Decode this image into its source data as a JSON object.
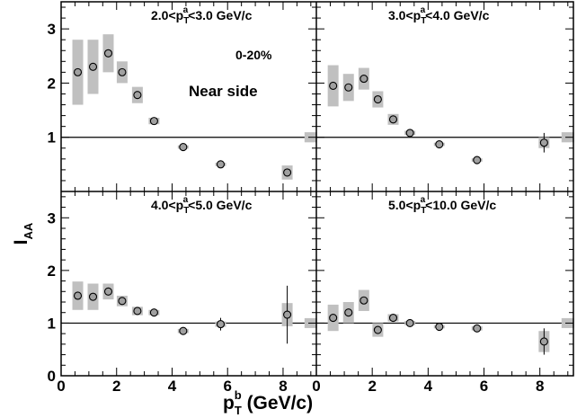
{
  "chart_data": {
    "type": "scatter",
    "layout": "2x2 panels, shared axes",
    "xlabel": {
      "main": "p",
      "sub": "T",
      "sup": "b",
      "unit": " (GeV/c)"
    },
    "ylabel": {
      "main": "I",
      "sub": "AA"
    },
    "xlim": [
      0,
      9.2
    ],
    "xticks": [
      0,
      2,
      4,
      6,
      8
    ],
    "xtick_labels": [
      "0",
      "2",
      "4",
      "6",
      "8"
    ],
    "ylim_top": [
      0,
      3.5
    ],
    "ylim_bottom": [
      0,
      3.5
    ],
    "yticks_top": [
      1,
      2,
      3
    ],
    "yticks_bottom": [
      0,
      1,
      2,
      3
    ],
    "reference_line": 1,
    "grid": false,
    "legend": "none",
    "annotations": {
      "centrality": "0-20%",
      "side": "Near side"
    },
    "colors": {
      "marker_fill": "#a0a0a0",
      "marker_edge": "#000000",
      "syst_box": "#c0c0c0",
      "line": "#000000"
    },
    "panels": [
      {
        "id": "a",
        "label": {
          "pre": "2.0<p",
          "sub": "T",
          "sup": "a",
          "post": "<3.0 GeV/c"
        },
        "x": [
          0.6,
          1.15,
          1.7,
          2.2,
          2.75,
          3.35,
          4.4,
          5.75,
          8.15
        ],
        "y": [
          2.2,
          2.3,
          2.55,
          2.2,
          1.78,
          1.3,
          0.82,
          0.5,
          0.35
        ],
        "stat_err": [
          0.05,
          0.05,
          0.05,
          0.04,
          0.03,
          0.03,
          0.02,
          0.02,
          0.05
        ],
        "syst_err": [
          0.6,
          0.5,
          0.35,
          0.2,
          0.15,
          0.06,
          0.03,
          0.03,
          0.13
        ],
        "norm_box": 0.12
      },
      {
        "id": "b",
        "label": {
          "pre": "3.0<p",
          "sub": "T",
          "sup": "a",
          "post": "<4.0 GeV/c"
        },
        "x": [
          0.6,
          1.15,
          1.7,
          2.2,
          2.75,
          3.35,
          4.4,
          5.75,
          8.15
        ],
        "y": [
          1.95,
          1.92,
          2.08,
          1.7,
          1.33,
          1.08,
          0.87,
          0.58,
          0.9
        ],
        "stat_err": [
          0.05,
          0.05,
          0.05,
          0.04,
          0.03,
          0.03,
          0.02,
          0.02,
          0.18
        ],
        "syst_err": [
          0.38,
          0.25,
          0.2,
          0.15,
          0.1,
          0.04,
          0.03,
          0.03,
          0.1
        ],
        "norm_box": 0.12
      },
      {
        "id": "c",
        "label": {
          "pre": "4.0<p",
          "sub": "T",
          "sup": "a",
          "post": "<5.0 GeV/c"
        },
        "x": [
          0.6,
          1.15,
          1.7,
          2.2,
          2.75,
          3.35,
          4.4,
          5.75,
          8.15
        ],
        "y": [
          1.52,
          1.5,
          1.6,
          1.42,
          1.23,
          1.2,
          0.85,
          0.98,
          1.16
        ],
        "stat_err": [
          0.05,
          0.05,
          0.05,
          0.04,
          0.03,
          0.03,
          0.03,
          0.12,
          0.55
        ],
        "syst_err": [
          0.27,
          0.25,
          0.15,
          0.1,
          0.08,
          0.05,
          0.04,
          0.05,
          0.22
        ],
        "norm_box": 0.12
      },
      {
        "id": "d",
        "label": {
          "pre": "5.0<p",
          "sub": "T",
          "sup": "a",
          "post": "<10.0 GeV/c"
        },
        "x": [
          0.6,
          1.15,
          1.7,
          2.2,
          2.75,
          3.35,
          4.4,
          5.75,
          8.15
        ],
        "y": [
          1.1,
          1.2,
          1.43,
          0.87,
          1.1,
          1.0,
          0.93,
          0.9,
          0.65
        ],
        "stat_err": [
          0.06,
          0.06,
          0.06,
          0.05,
          0.04,
          0.04,
          0.03,
          0.03,
          0.25
        ],
        "syst_err": [
          0.25,
          0.2,
          0.2,
          0.13,
          0.07,
          0.04,
          0.03,
          0.04,
          0.2
        ],
        "norm_box": 0.12
      }
    ]
  }
}
